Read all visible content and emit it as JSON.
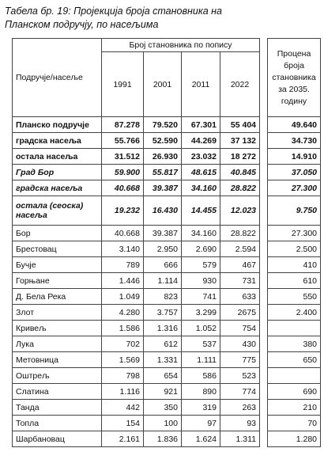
{
  "title": [
    "Табела бр. 19: Пројекција броја становника на",
    "Планском подручју, по насељима"
  ],
  "table": {
    "header": {
      "area": "Подручје/насеље",
      "census": "Број становника по попису",
      "years": [
        "1991",
        "2001",
        "2011",
        "2022"
      ],
      "projection": "Процена броја становника за 2035. годину"
    },
    "rows": [
      {
        "label": "Планско подручје",
        "style": "bold",
        "values": [
          "87.278",
          "79.520",
          "67.301",
          "55 404",
          "49.640"
        ]
      },
      {
        "label": "градска насеља",
        "style": "bold",
        "values": [
          "55.766",
          "52.590",
          "44.269",
          "37 132",
          "34.730"
        ]
      },
      {
        "label": "остала насеља",
        "style": "bold",
        "values": [
          "31.512",
          "26.930",
          "23.032",
          "18 272",
          "14.910"
        ]
      },
      {
        "label": "Град Бор",
        "style": "bold-italic",
        "values": [
          "59.900",
          "55.817",
          "48.615",
          "40.845",
          "37.050"
        ]
      },
      {
        "label": "градска насеља",
        "style": "bold-italic",
        "values": [
          "40.668",
          "39.387",
          "34.160",
          "28.822",
          "27.300"
        ]
      },
      {
        "label": "остала (сеоска) насеља",
        "style": "bold-italic",
        "values": [
          "19.232",
          "16.430",
          "14.455",
          "12.023",
          "9.750"
        ]
      },
      {
        "label": "Бор",
        "style": "normal",
        "values": [
          "40.668",
          "39.387",
          "34.160",
          "28.822",
          "27.300"
        ]
      },
      {
        "label": "Брестовац",
        "style": "normal",
        "values": [
          "3.140",
          "2.950",
          "2.690",
          "2.594",
          "2.500"
        ]
      },
      {
        "label": "Бучје",
        "style": "normal",
        "values": [
          "789",
          "666",
          "579",
          "467",
          "410"
        ]
      },
      {
        "label": "Горњане",
        "style": "normal",
        "values": [
          "1.446",
          "1.114",
          "930",
          "731",
          "610"
        ]
      },
      {
        "label": "Д. Бела Река",
        "style": "normal",
        "values": [
          "1.049",
          "823",
          "741",
          "633",
          "550"
        ]
      },
      {
        "label": "Злот",
        "style": "normal",
        "values": [
          "4.280",
          "3.757",
          "3.299",
          "2675",
          "2.400"
        ]
      },
      {
        "label": "Кривељ",
        "style": "normal",
        "values": [
          "1.586",
          "1.316",
          "1.052",
          "754",
          null
        ]
      },
      {
        "label": "Лука",
        "style": "normal",
        "values": [
          "702",
          "612",
          "537",
          "430",
          "380"
        ]
      },
      {
        "label": "Метовница",
        "style": "normal",
        "values": [
          "1.569",
          "1.331",
          "1.111",
          "775",
          "650"
        ]
      },
      {
        "label": "Оштрељ",
        "style": "normal",
        "values": [
          "798",
          "654",
          "586",
          "523",
          null
        ]
      },
      {
        "label": "Слатина",
        "style": "normal",
        "values": [
          "1.116",
          "921",
          "890",
          "774",
          "690"
        ]
      },
      {
        "label": "Танда",
        "style": "normal",
        "values": [
          "442",
          "350",
          "319",
          "263",
          "210"
        ]
      },
      {
        "label": "Топла",
        "style": "normal",
        "values": [
          "154",
          "100",
          "97",
          "93",
          "70"
        ]
      },
      {
        "label": "Шарбановац",
        "style": "normal",
        "values": [
          "2.161",
          "1.836",
          "1.624",
          "1.311",
          "1.280"
        ]
      }
    ]
  }
}
